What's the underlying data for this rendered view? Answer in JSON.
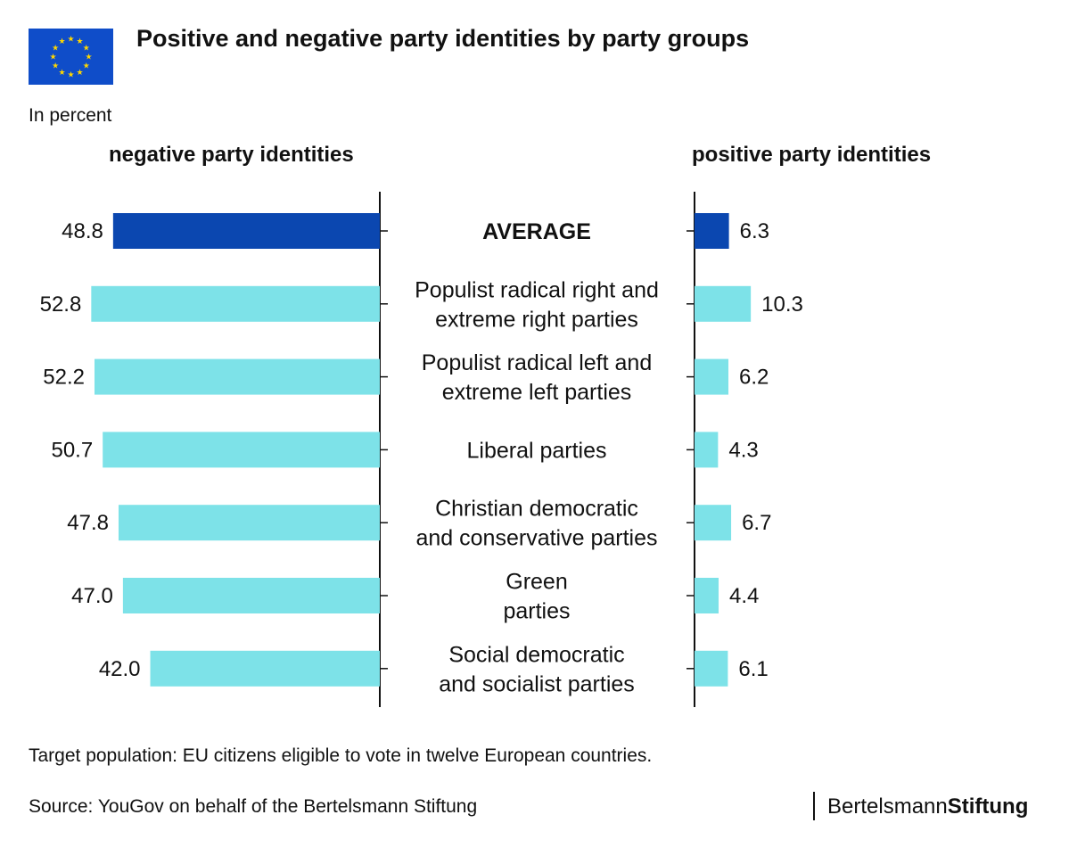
{
  "header": {
    "title": "Positive and negative party identities by party groups",
    "unit": "In percent"
  },
  "panels": {
    "negative_title": "negative party identities",
    "positive_title": "positive party identities"
  },
  "colors": {
    "average_bar": "#0b47b0",
    "group_bar": "#7de2e8",
    "flag_blue": "#0f4dc9",
    "flag_star": "#ffd700"
  },
  "chart_data": {
    "type": "bar",
    "orientation": "horizontal",
    "categories": [
      [
        "AVERAGE"
      ],
      [
        "Populist radical right and",
        "extreme right parties"
      ],
      [
        "Populist radical left and",
        "extreme left parties"
      ],
      [
        "Liberal parties"
      ],
      [
        "Christian democratic",
        "and conservative parties"
      ],
      [
        "Green",
        "parties"
      ],
      [
        "Social democratic",
        "and socialist parties"
      ]
    ],
    "series": [
      {
        "name": "negative party identities",
        "values": [
          48.8,
          52.8,
          52.2,
          50.7,
          47.8,
          47.0,
          42.0
        ]
      },
      {
        "name": "positive party identities",
        "values": [
          6.3,
          10.3,
          6.2,
          4.3,
          6.7,
          4.4,
          6.1
        ]
      }
    ],
    "value_labels": {
      "negative": [
        "48.8",
        "52.8",
        "52.2",
        "50.7",
        "47.8",
        "47.0",
        "42.0"
      ],
      "positive": [
        "6.3",
        "10.3",
        "6.2",
        "4.3",
        "6.7",
        "4.4",
        "6.1"
      ]
    }
  },
  "footer": {
    "note": "Target population: EU citizens eligible to vote in twelve European countries.",
    "source": "Source: YouGov on behalf of the Bertelsmann Stiftung",
    "logo_regular": "Bertelsmann",
    "logo_bold": "Stiftung"
  }
}
